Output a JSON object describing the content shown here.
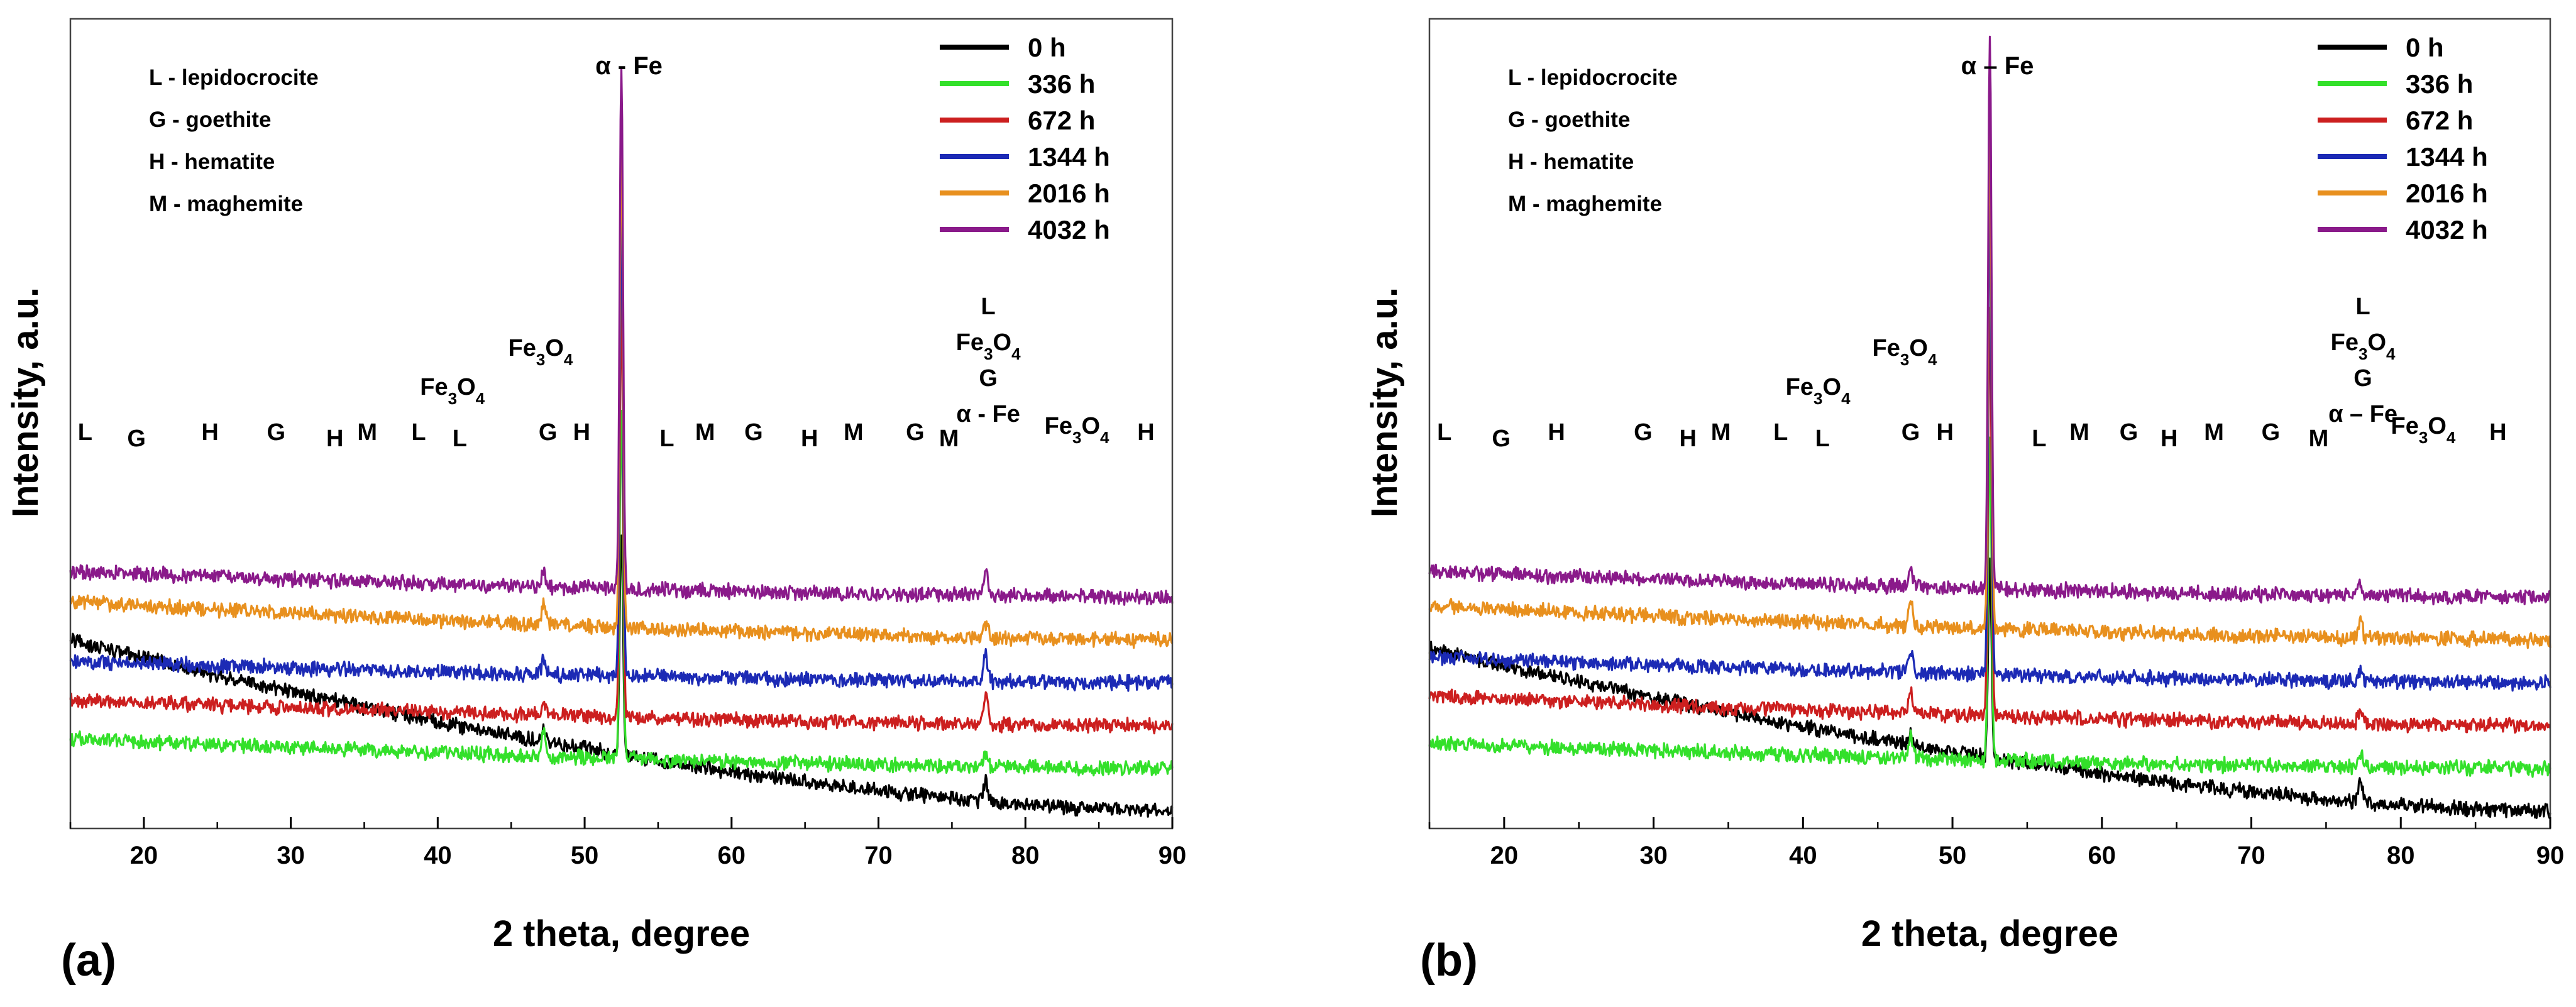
{
  "figure": {
    "caption_labels": [
      "(a)",
      "(b)"
    ]
  },
  "chart_data": [
    {
      "type": "line",
      "panel_label": "(a)",
      "title": "",
      "xlabel": "2 theta, degree",
      "ylabel": "Intensity, a.u.",
      "xlim": [
        15,
        90
      ],
      "xticks": [
        20,
        30,
        40,
        50,
        60,
        70,
        80,
        90
      ],
      "peak_title": "α - Fe",
      "legend_position": "top-right",
      "legend": [
        {
          "label": "0 h",
          "color": "#000000"
        },
        {
          "label": "336 h",
          "color": "#33e02a"
        },
        {
          "label": "672 h",
          "color": "#cc1f1f"
        },
        {
          "label": "1344 h",
          "color": "#1c2ab5"
        },
        {
          "label": "2016 h",
          "color": "#e8901e"
        },
        {
          "label": "4032 h",
          "color": "#8a1a8a"
        }
      ],
      "abbreviations": [
        "L - lepidocrocite",
        "G - goethite",
        "H - hematite",
        "M - maghemite"
      ],
      "phase_annotations": [
        {
          "x": 16,
          "text": "L"
        },
        {
          "x": 19.5,
          "text": "G"
        },
        {
          "x": 24.5,
          "text": "H"
        },
        {
          "x": 29,
          "text": "G"
        },
        {
          "x": 33,
          "text": "H"
        },
        {
          "x": 35.2,
          "text": "M"
        },
        {
          "x": 38.7,
          "text": "L"
        },
        {
          "x": 41.5,
          "text": "L"
        },
        {
          "x": 47.5,
          "text": "G"
        },
        {
          "x": 49.8,
          "text": "H"
        },
        {
          "x": 55.6,
          "text": "L"
        },
        {
          "x": 58.2,
          "text": "M"
        },
        {
          "x": 61.5,
          "text": "G"
        },
        {
          "x": 65.3,
          "text": "H"
        },
        {
          "x": 68.3,
          "text": "M"
        },
        {
          "x": 72.5,
          "text": "G"
        },
        {
          "x": 74.8,
          "text": "M"
        },
        {
          "x": 88.2,
          "text": "H"
        }
      ],
      "fe3o4_annotations": [
        {
          "x": 41,
          "tier": 1
        },
        {
          "x": 47,
          "tier": 2
        },
        {
          "x": 83.5,
          "tier": 0
        }
      ],
      "stack_annotation": {
        "x": 77.3,
        "lines": [
          "L",
          "Fe3O4",
          "G",
          "α - Fe"
        ]
      },
      "series": [
        {
          "name": "0 h",
          "color": "#000000",
          "baseline": [
            4.0,
            0.0
          ],
          "peaks": [
            {
              "pos": 47.2,
              "height": 0.3
            },
            {
              "pos": 52.5,
              "height": 5.2
            },
            {
              "pos": 77.3,
              "height": 0.45
            }
          ]
        },
        {
          "name": "336 h",
          "color": "#33e02a",
          "baseline": [
            1.7,
            1.0
          ],
          "peaks": [
            {
              "pos": 47.2,
              "height": 0.65
            },
            {
              "pos": 52.5,
              "height": 8.2
            },
            {
              "pos": 77.3,
              "height": 0.3
            }
          ]
        },
        {
          "name": "672 h",
          "color": "#cc1f1f",
          "baseline": [
            2.6,
            2.0
          ],
          "peaks": [
            {
              "pos": 47.2,
              "height": 0.25
            },
            {
              "pos": 52.5,
              "height": 9.8
            },
            {
              "pos": 77.3,
              "height": 0.75
            }
          ]
        },
        {
          "name": "1344 h",
          "color": "#1c2ab5",
          "baseline": [
            3.5,
            3.0
          ],
          "peaks": [
            {
              "pos": 47.2,
              "height": 0.3
            },
            {
              "pos": 52.5,
              "height": 10.8
            },
            {
              "pos": 77.3,
              "height": 0.65
            }
          ]
        },
        {
          "name": "2016 h",
          "color": "#e8901e",
          "baseline": [
            4.9,
            4.0
          ],
          "peaks": [
            {
              "pos": 47.2,
              "height": 0.45
            },
            {
              "pos": 52.5,
              "height": 11.5
            },
            {
              "pos": 77.3,
              "height": 0.35
            }
          ]
        },
        {
          "name": "4032 h",
          "color": "#8a1a8a",
          "baseline": [
            5.6,
            5.0
          ],
          "peaks": [
            {
              "pos": 47.2,
              "height": 0.35
            },
            {
              "pos": 52.5,
              "height": 12.2
            },
            {
              "pos": 77.3,
              "height": 0.65
            }
          ]
        }
      ]
    },
    {
      "type": "line",
      "panel_label": "(b)",
      "title": "",
      "xlabel": "2 theta, degree",
      "ylabel": "Intensity, a.u.",
      "xlim": [
        15,
        90
      ],
      "xticks": [
        20,
        30,
        40,
        50,
        60,
        70,
        80,
        90
      ],
      "peak_title": "α – Fe",
      "legend_position": "top-right",
      "legend": [
        {
          "label": "0 h",
          "color": "#000000"
        },
        {
          "label": "336 h",
          "color": "#33e02a"
        },
        {
          "label": "672 h",
          "color": "#cc1f1f"
        },
        {
          "label": "1344 h",
          "color": "#1c2ab5"
        },
        {
          "label": "2016 h",
          "color": "#e8901e"
        },
        {
          "label": "4032 h",
          "color": "#8a1a8a"
        }
      ],
      "abbreviations": [
        "L - lepidocrocite",
        "G - goethite",
        "H - hematite",
        "M - maghemite"
      ],
      "phase_annotations": [
        {
          "x": 16,
          "text": "L"
        },
        {
          "x": 19.8,
          "text": "G"
        },
        {
          "x": 23.5,
          "text": "H"
        },
        {
          "x": 29.3,
          "text": "G"
        },
        {
          "x": 32.3,
          "text": "H"
        },
        {
          "x": 34.5,
          "text": "M"
        },
        {
          "x": 38.5,
          "text": "L"
        },
        {
          "x": 41.3,
          "text": "L"
        },
        {
          "x": 47.2,
          "text": "G"
        },
        {
          "x": 49.5,
          "text": "H"
        },
        {
          "x": 55.8,
          "text": "L"
        },
        {
          "x": 58.5,
          "text": "M"
        },
        {
          "x": 61.8,
          "text": "G"
        },
        {
          "x": 64.5,
          "text": "H"
        },
        {
          "x": 67.5,
          "text": "M"
        },
        {
          "x": 71.3,
          "text": "G"
        },
        {
          "x": 74.5,
          "text": "M"
        },
        {
          "x": 86.5,
          "text": "H"
        }
      ],
      "fe3o4_annotations": [
        {
          "x": 41,
          "tier": 1
        },
        {
          "x": 46.8,
          "tier": 2
        },
        {
          "x": 81.5,
          "tier": 0
        }
      ],
      "stack_annotation": {
        "x": 77.3,
        "lines": [
          "L",
          "Fe3O4",
          "G",
          "α – Fe"
        ]
      },
      "series": [
        {
          "name": "0 h",
          "color": "#000000",
          "baseline": [
            3.8,
            0.0
          ],
          "peaks": [
            {
              "pos": 47.2,
              "height": 0.3
            },
            {
              "pos": 52.5,
              "height": 4.6
            },
            {
              "pos": 77.3,
              "height": 0.45
            }
          ]
        },
        {
          "name": "336 h",
          "color": "#33e02a",
          "baseline": [
            1.6,
            1.0
          ],
          "peaks": [
            {
              "pos": 47.2,
              "height": 0.5
            },
            {
              "pos": 52.5,
              "height": 7.6
            },
            {
              "pos": 77.3,
              "height": 0.35
            }
          ]
        },
        {
          "name": "672 h",
          "color": "#cc1f1f",
          "baseline": [
            2.7,
            2.0
          ],
          "peaks": [
            {
              "pos": 47.2,
              "height": 0.55
            },
            {
              "pos": 52.5,
              "height": 9.6
            },
            {
              "pos": 77.3,
              "height": 0.35
            }
          ]
        },
        {
          "name": "1344 h",
          "color": "#1c2ab5",
          "baseline": [
            3.6,
            3.0
          ],
          "peaks": [
            {
              "pos": 47.2,
              "height": 0.45
            },
            {
              "pos": 52.5,
              "height": 11.0
            },
            {
              "pos": 77.3,
              "height": 0.3
            }
          ]
        },
        {
          "name": "2016 h",
          "color": "#e8901e",
          "baseline": [
            4.8,
            4.0
          ],
          "peaks": [
            {
              "pos": 47.2,
              "height": 0.55
            },
            {
              "pos": 52.5,
              "height": 12.0
            },
            {
              "pos": 77.3,
              "height": 0.45
            }
          ]
        },
        {
          "name": "4032 h",
          "color": "#8a1a8a",
          "baseline": [
            5.6,
            5.0
          ],
          "peaks": [
            {
              "pos": 47.2,
              "height": 0.35
            },
            {
              "pos": 52.5,
              "height": 12.8
            },
            {
              "pos": 77.3,
              "height": 0.3
            }
          ]
        }
      ]
    }
  ]
}
